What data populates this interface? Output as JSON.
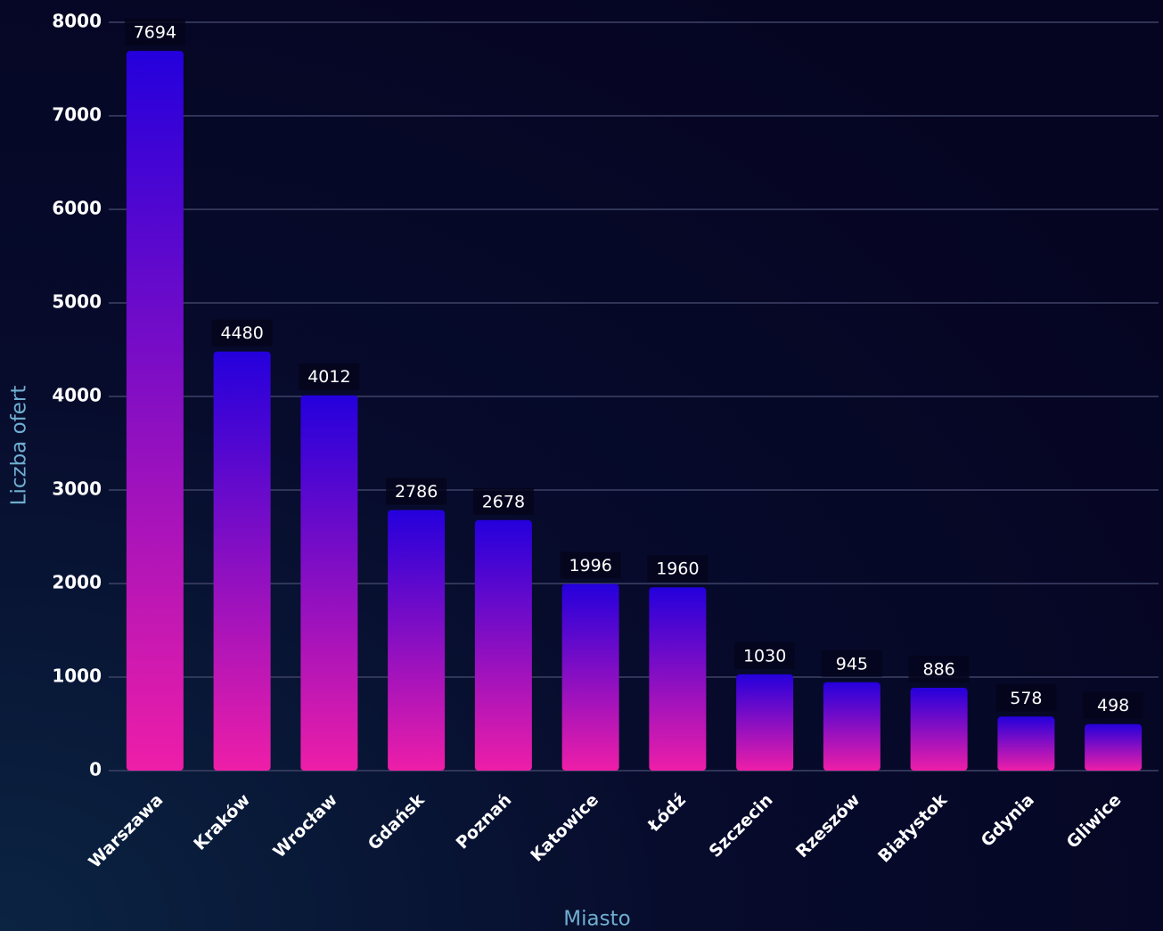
{
  "chart_data": {
    "type": "bar",
    "x_label": "Miasto",
    "y_label": "Liczba ofert",
    "categories": [
      "Warszawa",
      "Kraków",
      "Wrocław",
      "Gdańsk",
      "Poznań",
      "Katowice",
      "Łódź",
      "Szczecin",
      "Rzeszów",
      "Białystok",
      "Gdynia",
      "Gliwice"
    ],
    "values": [
      7694,
      4480,
      4012,
      2786,
      2678,
      1996,
      1960,
      1030,
      945,
      886,
      578,
      498
    ],
    "color_top": "#2400dc",
    "color_bottom": "#ee1ea8",
    "ylim": [
      0,
      8000
    ],
    "yticks": [
      0,
      1000,
      2000,
      3000,
      4000,
      5000,
      6000,
      7000,
      8000
    ],
    "grid": true
  }
}
